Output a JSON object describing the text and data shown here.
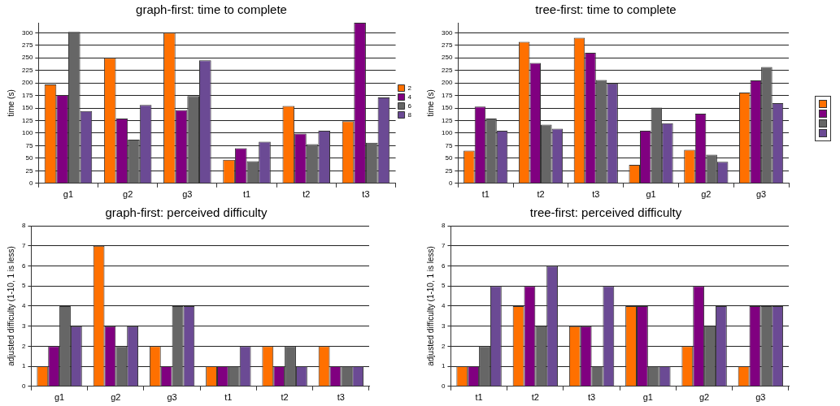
{
  "chart_data": [
    {
      "type": "bar",
      "title": "graph-first: time to complete",
      "ylabel": "time (s)",
      "categories": [
        "g1",
        "g2",
        "g3",
        "t1",
        "t2",
        "t3"
      ],
      "ylim": [
        0,
        320
      ],
      "yticks": [
        0,
        25,
        50,
        75,
        100,
        125,
        150,
        175,
        200,
        225,
        250,
        275,
        300
      ],
      "grid": "y",
      "legend": "right",
      "series": [
        {
          "name": "2",
          "color": "#ff7000",
          "values": [
            197,
            250,
            300,
            47,
            154,
            124
          ]
        },
        {
          "name": "4",
          "color": "#800080",
          "values": [
            176,
            129,
            146,
            70,
            99,
            320
          ]
        },
        {
          "name": "6",
          "color": "#666666",
          "values": [
            302,
            87,
            174,
            44,
            78,
            81
          ]
        },
        {
          "name": "8",
          "color": "#6b4a94",
          "values": [
            144,
            156,
            245,
            83,
            105,
            171
          ]
        }
      ]
    },
    {
      "type": "bar",
      "title": "tree-first: time to complete",
      "ylabel": "time (s)",
      "categories": [
        "t1",
        "t2",
        "t3",
        "g1",
        "g2",
        "g3"
      ],
      "ylim": [
        0,
        320
      ],
      "yticks": [
        0,
        25,
        50,
        75,
        100,
        125,
        150,
        175,
        200,
        225,
        250,
        275,
        300
      ],
      "grid": "y",
      "legend": "right",
      "series": [
        {
          "color": "#ff7000",
          "values": [
            65,
            282,
            290,
            37,
            67,
            181
          ]
        },
        {
          "color": "#800080",
          "values": [
            153,
            240,
            260,
            105,
            139,
            205
          ]
        },
        {
          "color": "#666666",
          "values": [
            129,
            117,
            206,
            151,
            57,
            232
          ]
        },
        {
          "color": "#6b4a94",
          "values": [
            105,
            109,
            199,
            120,
            43,
            160
          ]
        }
      ]
    },
    {
      "type": "bar",
      "title": "graph-first: perceived difficulty",
      "ylabel": "adjusted difficulty (1-10, 1 is less)",
      "categories": [
        "g1",
        "g2",
        "g3",
        "t1",
        "t2",
        "t3"
      ],
      "ylim": [
        0,
        8
      ],
      "yticks": [
        0,
        1,
        2,
        3,
        4,
        5,
        6,
        7,
        8
      ],
      "grid": "y",
      "series": [
        {
          "color": "#ff7000",
          "values": [
            1,
            7,
            2,
            1,
            2,
            2
          ]
        },
        {
          "color": "#800080",
          "values": [
            2,
            3,
            1,
            1,
            1,
            1
          ]
        },
        {
          "color": "#666666",
          "values": [
            4,
            2,
            4,
            1,
            2,
            1
          ]
        },
        {
          "color": "#6b4a94",
          "values": [
            3,
            3,
            4,
            2,
            1,
            1
          ]
        }
      ]
    },
    {
      "type": "bar",
      "title": "tree-first: perceived difficulty",
      "ylabel": "adjusted difficulty (1-10, 1 is less)",
      "categories": [
        "t1",
        "t2",
        "t3",
        "g1",
        "g2",
        "g3"
      ],
      "ylim": [
        0,
        8
      ],
      "yticks": [
        0,
        1,
        2,
        3,
        4,
        5,
        6,
        7,
        8
      ],
      "grid": "y",
      "series": [
        {
          "color": "#ff7000",
          "values": [
            1,
            4,
            3,
            4,
            2,
            1
          ]
        },
        {
          "color": "#800080",
          "values": [
            1,
            5,
            3,
            4,
            5,
            4
          ]
        },
        {
          "color": "#666666",
          "values": [
            2,
            3,
            1,
            1,
            3,
            4
          ]
        },
        {
          "color": "#6b4a94",
          "values": [
            5,
            6,
            5,
            1,
            4,
            4
          ]
        }
      ]
    }
  ]
}
